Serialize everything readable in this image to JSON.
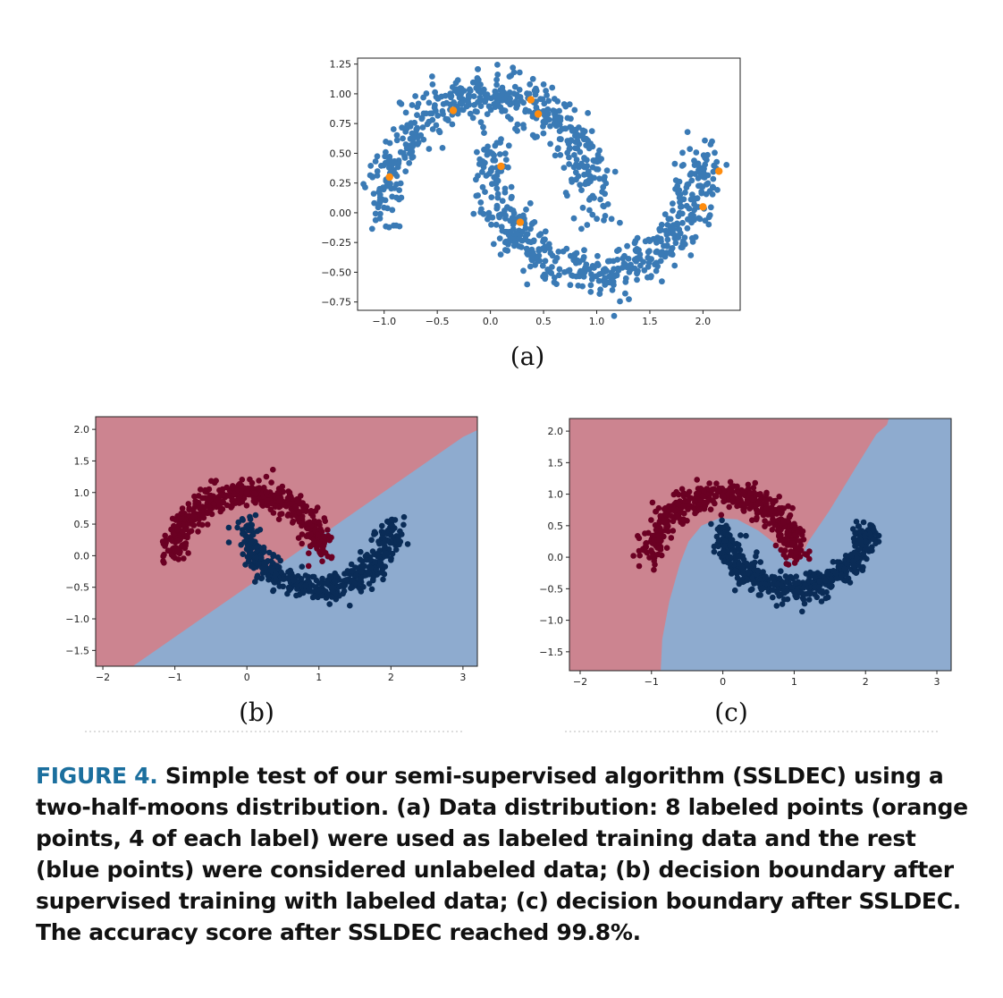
{
  "figure": {
    "label": "FIGURE 4.",
    "caption": "Simple test of our semi-supervised algorithm (SSLDEC) using a two-half-moons distribution. (a) Data distribution: 8 labeled points (orange points, 4 of each label) were used as labeled training data and the rest (blue points) were considered unlabeled data; (b) decision boundary after supervised training with labeled data; (c) decision boundary after SSLDEC. The accuracy score after SSLDEC reached 99.8%."
  },
  "colors": {
    "unlabeled": "#3a7ab5",
    "labeled": "#ff8c0e",
    "class0_point": "#6b0023",
    "class1_point": "#0a2c57",
    "class0_region": "#cc8490",
    "class1_region": "#8eabcf"
  },
  "chart_data": [
    {
      "panel": "(a)",
      "type": "scatter",
      "xlim": [
        -1.25,
        2.35
      ],
      "ylim": [
        -0.82,
        1.3
      ],
      "xticks": [
        "−1.0",
        "−0.5",
        "0.0",
        "0.5",
        "1.0",
        "1.5",
        "2.0"
      ],
      "yticks": [
        "1.25",
        "1.00",
        "0.75",
        "0.50",
        "0.25",
        "0.00",
        "−0.25",
        "−0.50",
        "−0.75"
      ],
      "series": [
        {
          "points": "two interleaving half-moons, ~1000 unlabeled points, noise ~0.1",
          "count": 1000
        },
        {
          "points": [
            [
              -0.95,
              0.3
            ],
            [
              -0.35,
              0.86
            ],
            [
              0.38,
              0.95
            ],
            [
              0.45,
              0.83
            ],
            [
              0.1,
              0.39
            ],
            [
              0.28,
              -0.08
            ],
            [
              2.0,
              0.05
            ],
            [
              2.15,
              0.35
            ]
          ]
        }
      ],
      "grid": false
    },
    {
      "panel": "(b)",
      "type": "scatter",
      "xlim": [
        -2.1,
        3.2
      ],
      "ylim": [
        -1.75,
        2.2
      ],
      "xticks": [
        "−2",
        "−1",
        "0",
        "1",
        "2",
        "3"
      ],
      "yticks": [
        "2.0",
        "1.5",
        "1.0",
        "0.5",
        "0.0",
        "−0.5",
        "−1.0",
        "−1.5"
      ],
      "boundary": "linear",
      "grid": false
    },
    {
      "panel": "(c)",
      "type": "scatter",
      "xlim": [
        -2.15,
        3.2
      ],
      "ylim": [
        -1.8,
        2.2
      ],
      "xticks": [
        "−2",
        "−1",
        "0",
        "1",
        "2",
        "3"
      ],
      "yticks": [
        "2.0",
        "1.5",
        "1.0",
        "0.5",
        "0.0",
        "−0.5",
        "−1.0",
        "−1.5"
      ],
      "boundary": "nonlinear",
      "grid": false
    }
  ]
}
